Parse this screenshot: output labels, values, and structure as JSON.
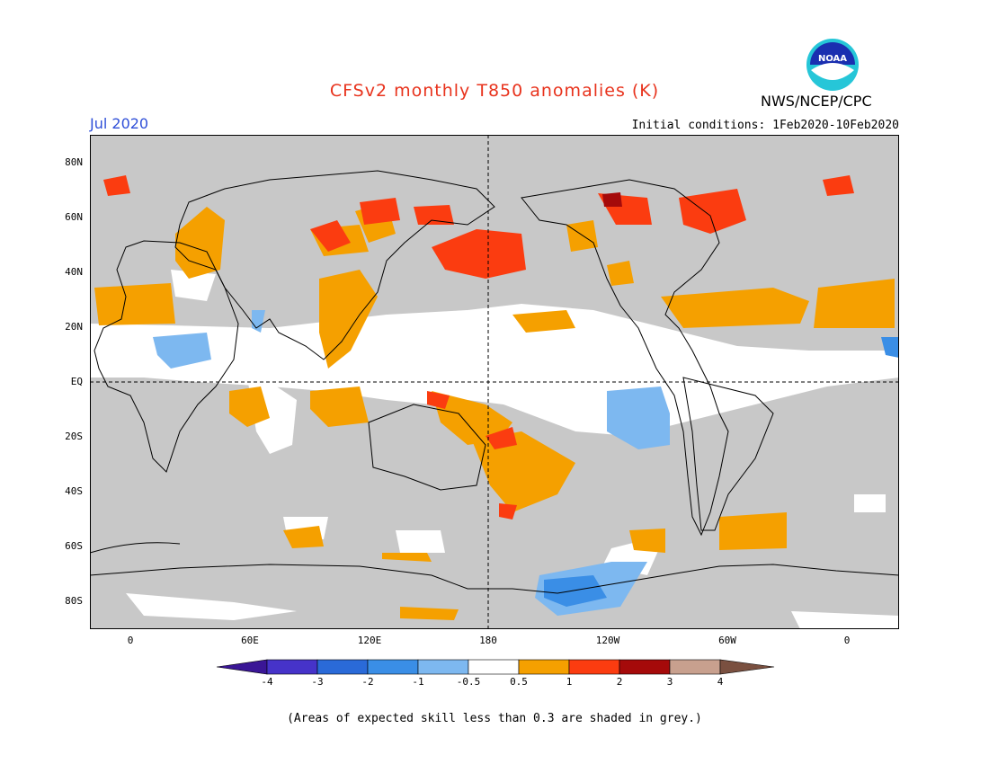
{
  "header": {
    "title": "CFSv2 monthly T850 anomalies (K)",
    "month": "Jul 2020",
    "agency": "NWS/NCEP/CPC",
    "initial_conditions": "Initial conditions: 1Feb2020-10Feb2020",
    "logo_text": "NOAA"
  },
  "map": {
    "lat_labels": [
      "80N",
      "60N",
      "40N",
      "20N",
      "EQ",
      "20S",
      "40S",
      "60S",
      "80S"
    ],
    "lon_labels": [
      "0",
      "60E",
      "120E",
      "180",
      "120W",
      "60W",
      "0"
    ],
    "background_color": "#c8c8c8"
  },
  "colorbar": {
    "labels": [
      "-4",
      "-3",
      "-2",
      "-1",
      "-0.5",
      "0.5",
      "1",
      "2",
      "3",
      "4"
    ],
    "colors": [
      "#3a1696",
      "#4633c9",
      "#2a6ad8",
      "#3a8ee6",
      "#7db8f0",
      "#ffffff",
      "#f5a000",
      "#fb3c10",
      "#a50a0a",
      "#c8a08e",
      "#7a5040"
    ]
  },
  "footnote": "(Areas of expected skill less than 0.3 are shaded in grey.)"
}
